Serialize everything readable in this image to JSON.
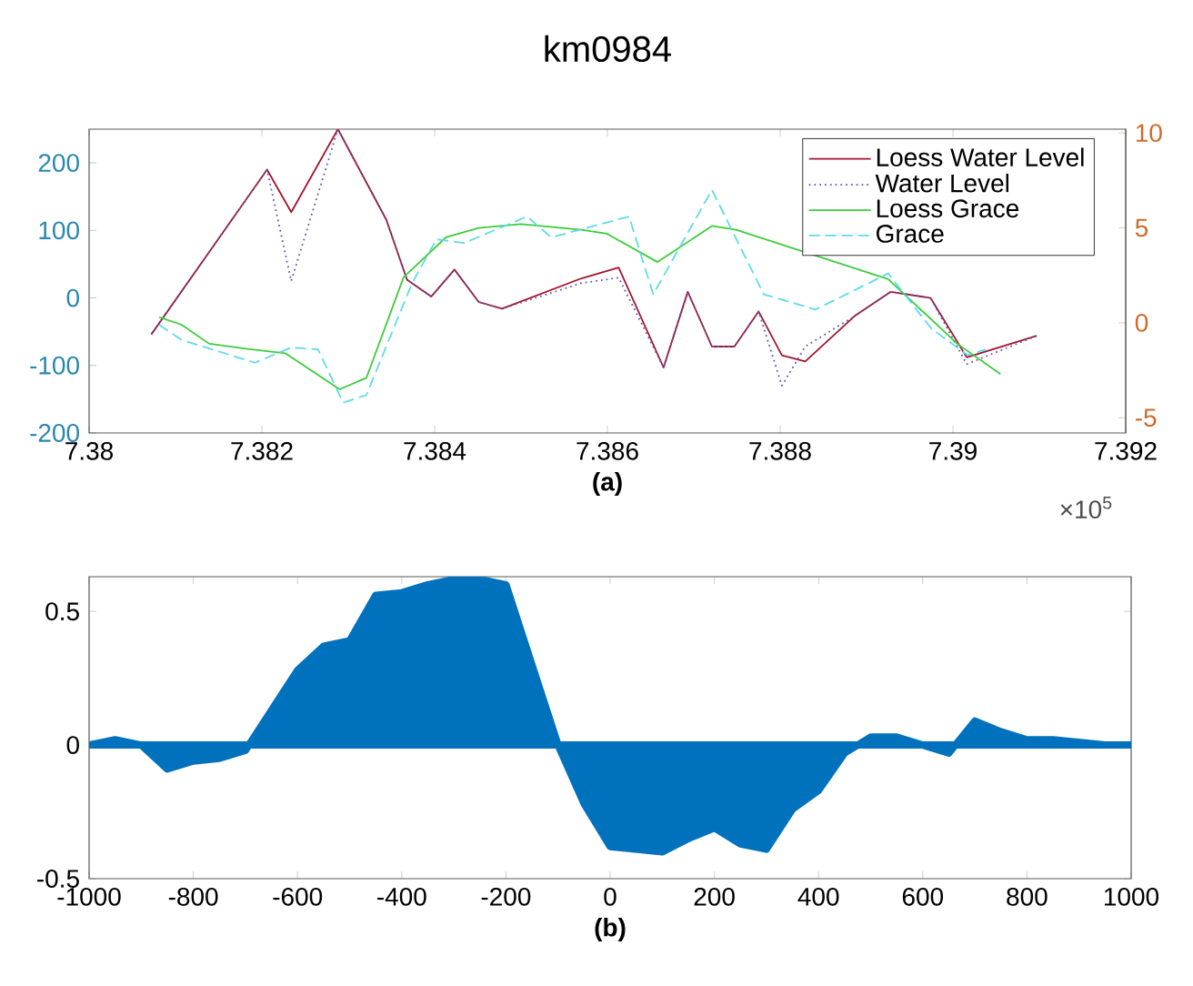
{
  "chart_data": [
    {
      "type": "line",
      "title": "km0984",
      "xlabel": "(a)",
      "annotations": [
        "×10$^{5}$"
      ],
      "xlim": [
        7.38,
        7.392
      ],
      "xticks": [
        7.38,
        7.382,
        7.384,
        7.386,
        7.388,
        7.39,
        7.392
      ],
      "ylim": [
        -200,
        250
      ],
      "yticks": [
        -200,
        -100,
        0,
        100,
        200
      ],
      "y2lim": [
        -5.8,
        10.2
      ],
      "y2ticks": [
        -5,
        0,
        5,
        10
      ],
      "legend": "top right",
      "marker": "none",
      "grid": false,
      "series": [
        {
          "name": "Loess Water Level",
          "color": "#a2142f",
          "line_style": "solid",
          "axis": "y",
          "x": [
            7.38072,
            7.38206,
            7.38234,
            7.38288,
            7.38344,
            7.38368,
            7.38396,
            7.38423,
            7.38451,
            7.38478,
            7.3857,
            7.38613,
            7.38665,
            7.38693,
            7.38721,
            7.38747,
            7.38775,
            7.38802,
            7.38829,
            7.38886,
            7.38928,
            7.38974,
            7.39016,
            7.39097
          ],
          "values": [
            -54,
            190,
            127,
            250,
            116,
            27,
            2,
            42,
            -6,
            -16,
            29,
            45,
            -103,
            9,
            -72,
            -72,
            -20,
            -85,
            -94,
            -27,
            9,
            0,
            -88,
            -56
          ]
        },
        {
          "name": "Water Level",
          "color": "#5a5ab4",
          "line_style": "dotted",
          "axis": "y",
          "x": [
            7.38072,
            7.38206,
            7.38234,
            7.38288,
            7.38344,
            7.38368,
            7.38396,
            7.38423,
            7.38451,
            7.38478,
            7.3857,
            7.38613,
            7.38665,
            7.38693,
            7.38721,
            7.38747,
            7.38775,
            7.38802,
            7.38829,
            7.38886,
            7.38928,
            7.38974,
            7.39016,
            7.39097
          ],
          "values": [
            -54,
            190,
            25,
            250,
            116,
            27,
            2,
            42,
            -6,
            -16,
            22,
            30,
            -103,
            9,
            -72,
            -72,
            -20,
            -130,
            -72,
            -27,
            9,
            0,
            -98,
            -56
          ]
        },
        {
          "name": "Loess Grace",
          "color": "#3ccc3c",
          "line_style": "solid",
          "axis": "y2",
          "x": [
            7.38081,
            7.38107,
            7.38139,
            7.38188,
            7.38227,
            7.3829,
            7.38321,
            7.38364,
            7.38413,
            7.38451,
            7.385,
            7.3857,
            7.38599,
            7.38658,
            7.38721,
            7.38749,
            7.38925,
            7.39005,
            7.39055
          ],
          "values": [
            0.3,
            -0.1,
            -1.1,
            -1.4,
            -1.6,
            -3.5,
            -2.9,
            2.4,
            4.5,
            5.0,
            5.2,
            4.9,
            4.7,
            3.2,
            5.1,
            4.9,
            2.3,
            -1.1,
            -2.7
          ]
        },
        {
          "name": "Grace",
          "color": "#5cdce6",
          "line_style": "dashed",
          "axis": "y2",
          "x": [
            7.38081,
            7.38107,
            7.38192,
            7.38234,
            7.38265,
            7.38294,
            7.38321,
            7.38374,
            7.38402,
            7.38434,
            7.38507,
            7.38535,
            7.38625,
            7.38653,
            7.38721,
            7.38781,
            7.38841,
            7.38925,
            7.38975,
            7.39017,
            7.39038
          ],
          "values": [
            -0.1,
            -0.9,
            -2.1,
            -1.3,
            -1.4,
            -4.2,
            -3.8,
            2.1,
            4.4,
            4.2,
            5.6,
            4.5,
            5.6,
            1.5,
            7.0,
            1.5,
            0.7,
            2.6,
            -0.3,
            -1.7,
            -1.4
          ]
        }
      ]
    },
    {
      "type": "area",
      "xlabel": "(b)",
      "xlim": [
        -1000,
        1000
      ],
      "xticks": [
        -1000,
        -800,
        -600,
        -400,
        -200,
        0,
        200,
        400,
        600,
        800,
        1000
      ],
      "ylim": [
        -0.5,
        0.63
      ],
      "yticks": [
        -0.5,
        0,
        0.5
      ],
      "grid": false,
      "series": [
        {
          "color": "#0072bd",
          "x": [
            -1000,
            -950,
            -900,
            -850,
            -800,
            -750,
            -700,
            -650,
            -600,
            -550,
            -500,
            -450,
            -400,
            -350,
            -300,
            -250,
            -200,
            -150,
            -100,
            -50,
            0,
            50,
            100,
            150,
            200,
            250,
            300,
            350,
            400,
            450,
            500,
            550,
            600,
            650,
            700,
            750,
            800,
            850,
            900,
            950,
            1000
          ],
          "values": [
            0,
            0.02,
            0,
            -0.09,
            -0.06,
            -0.05,
            -0.02,
            0.13,
            0.28,
            0.37,
            0.39,
            0.56,
            0.57,
            0.6,
            0.62,
            0.62,
            0.6,
            0.3,
            0,
            -0.22,
            -0.38,
            -0.39,
            -0.4,
            -0.35,
            -0.31,
            -0.37,
            -0.39,
            -0.24,
            -0.17,
            -0.03,
            0.03,
            0.03,
            0,
            -0.03,
            0.09,
            0.05,
            0.02,
            0.02,
            0.01,
            0,
            0
          ]
        }
      ]
    }
  ]
}
